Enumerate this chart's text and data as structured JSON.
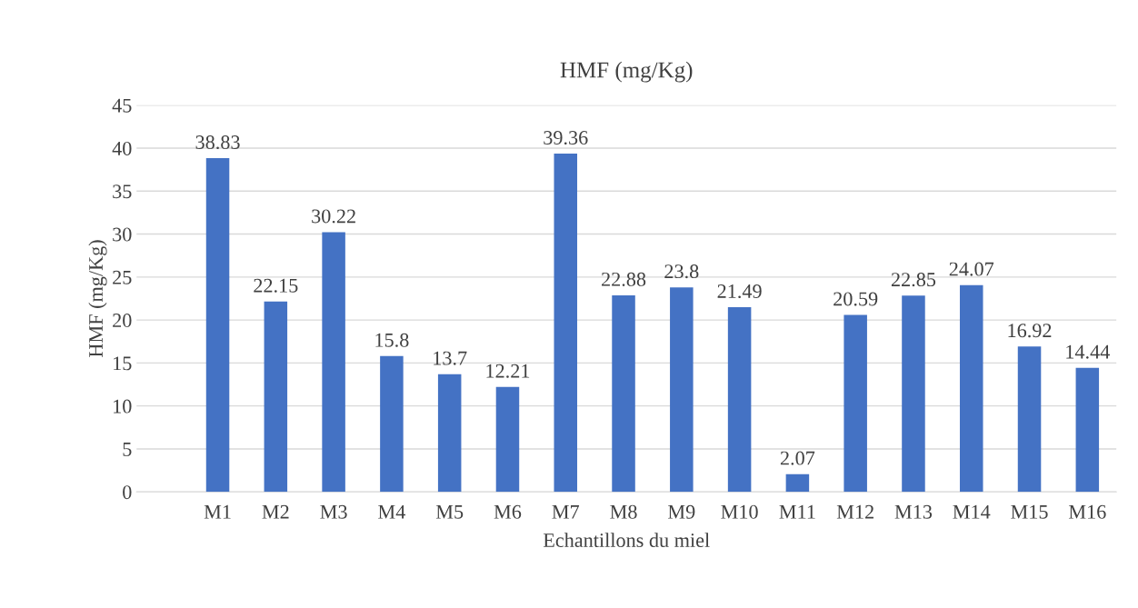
{
  "chart_data": {
    "type": "bar",
    "title": "HMF (mg/Kg)",
    "xlabel": "Echantillons du miel",
    "ylabel": "HMF (mg/Kg)",
    "categories": [
      "M1",
      "M2",
      "M3",
      "M4",
      "M5",
      "M6",
      "M7",
      "M8",
      "M9",
      "M10",
      "M11",
      "M12",
      "M13",
      "M14",
      "M15",
      "M16"
    ],
    "values": [
      38.83,
      22.15,
      30.22,
      15.8,
      13.7,
      12.21,
      39.36,
      22.88,
      23.8,
      21.49,
      2.07,
      20.59,
      22.85,
      24.07,
      16.92,
      14.44
    ],
    "color": "#4472c4",
    "ylim": [
      0,
      45
    ],
    "yticks": [
      0,
      5,
      10,
      15,
      20,
      25,
      30,
      35,
      40,
      45
    ],
    "grid": "y",
    "data_labels": true
  }
}
